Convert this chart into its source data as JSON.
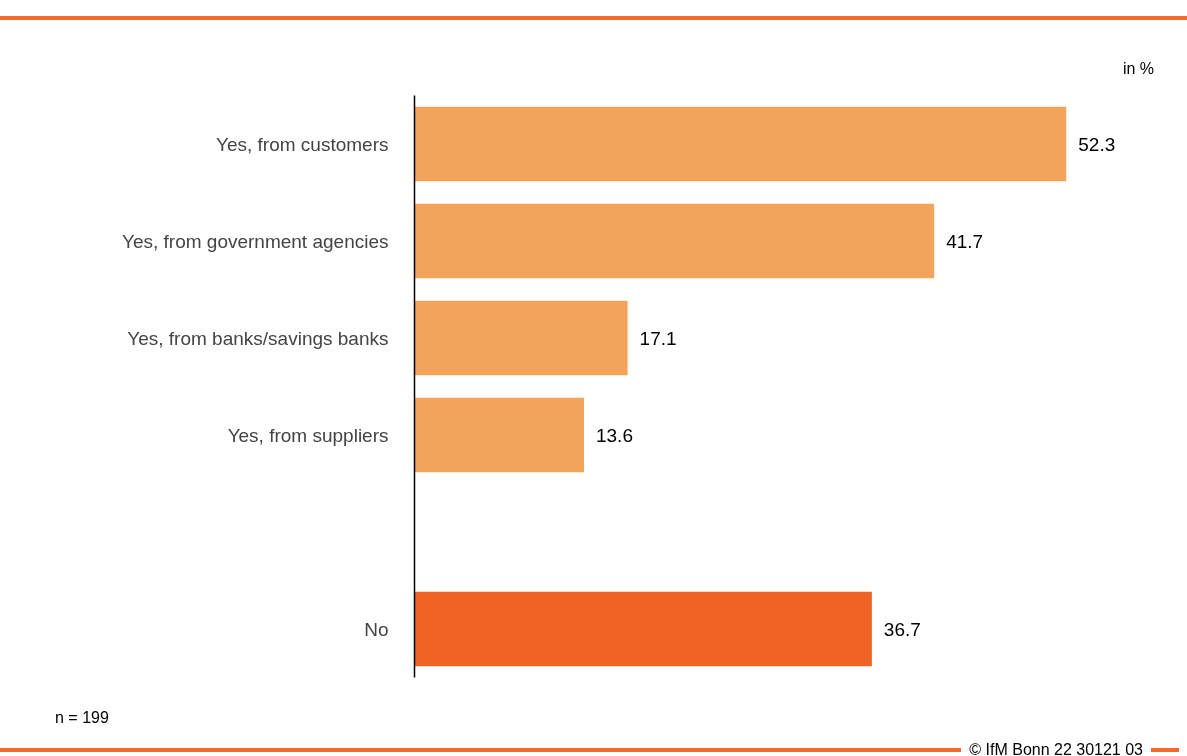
{
  "chart_data": {
    "type": "bar",
    "orientation": "horizontal",
    "categories": [
      "Yes, from customers",
      "Yes, from government agencies",
      "Yes, from banks/savings banks",
      "Yes, from suppliers",
      null,
      "No"
    ],
    "values": [
      52.3,
      41.7,
      17.1,
      13.6,
      null,
      36.7
    ],
    "colors": [
      "#f4a35a",
      "#f4a35a",
      "#f4a35a",
      "#f4a35a",
      "#f4a35a",
      "#ef6425"
    ],
    "data_labels": true,
    "grid": false,
    "tick_labels": "y",
    "annotations": [
      "in %",
      "n = 199",
      "© IfM Bonn 22 30121 03"
    ]
  }
}
